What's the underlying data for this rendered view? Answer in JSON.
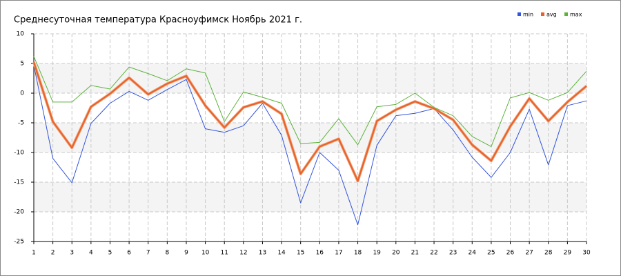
{
  "chart_data": {
    "type": "line",
    "title": "Среднесуточная температура Красноуфимск  Ноябрь 2021 г.",
    "x": [
      1,
      2,
      3,
      4,
      5,
      6,
      7,
      8,
      9,
      10,
      11,
      12,
      13,
      14,
      15,
      16,
      17,
      18,
      19,
      20,
      21,
      22,
      23,
      24,
      25,
      26,
      27,
      28,
      29,
      30
    ],
    "series": [
      {
        "name": "min",
        "color": "#3355dd",
        "values": [
          4.7,
          -11,
          -15.1,
          -5.1,
          -1.7,
          0.3,
          -1.2,
          0.6,
          2.3,
          -6.0,
          -6.6,
          -5.5,
          -1.7,
          -7.1,
          -18.5,
          -10.0,
          -13.0,
          -22.2,
          -8.8,
          -3.8,
          -3.4,
          -2.6,
          -6.2,
          -10.8,
          -14.2,
          -10.0,
          -2.7,
          -12.1,
          -2.1,
          -1.3
        ]
      },
      {
        "name": "avg",
        "color": "#e8602c",
        "values": [
          5.2,
          -4.8,
          -9.2,
          -2.3,
          -0.1,
          2.6,
          -0.2,
          1.6,
          2.9,
          -2.1,
          -5.8,
          -2.4,
          -1.4,
          -3.5,
          -13.6,
          -9.0,
          -7.7,
          -14.8,
          -4.7,
          -2.8,
          -1.4,
          -2.6,
          -4.5,
          -8.7,
          -11.4,
          -5.6,
          -0.9,
          -4.7,
          -1.5,
          1.2
        ]
      },
      {
        "name": "max",
        "color": "#5cb33a",
        "values": [
          6.2,
          -1.5,
          -1.5,
          1.3,
          0.7,
          4.4,
          3.3,
          2.1,
          4.1,
          3.4,
          -4.8,
          0.2,
          -0.7,
          -1.7,
          -8.5,
          -8.3,
          -4.3,
          -8.7,
          -2.3,
          -1.9,
          0,
          -2.4,
          -3.8,
          -7.3,
          -9.0,
          -0.8,
          0.1,
          -1.2,
          0.1,
          3.7
        ]
      }
    ],
    "xlim": [
      1,
      30
    ],
    "xticks": [
      1,
      2,
      3,
      4,
      5,
      6,
      7,
      8,
      9,
      10,
      11,
      12,
      13,
      14,
      15,
      16,
      17,
      18,
      19,
      20,
      21,
      22,
      23,
      24,
      25,
      26,
      27,
      28,
      29,
      30
    ],
    "ylim": [
      -25,
      10
    ],
    "yticks": [
      -25,
      -20,
      -15,
      -10,
      -5,
      0,
      5,
      10
    ],
    "grid": true,
    "legend": "top-right"
  }
}
